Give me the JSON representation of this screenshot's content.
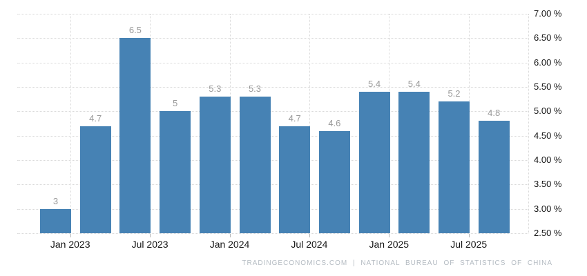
{
  "footer": {
    "text": "TRADINGECONOMICS.COM | NATIONAL BUREAU OF STATISTICS OF CHINA"
  },
  "chart_data": {
    "type": "bar",
    "values": [
      3,
      4.7,
      6.5,
      5,
      5.3,
      5.3,
      4.7,
      4.6,
      5.4,
      5.4,
      5.2,
      4.8
    ],
    "bar_labels": [
      "3",
      "4.7",
      "6.5",
      "5",
      "5.3",
      "5.3",
      "4.7",
      "4.6",
      "5.4",
      "5.4",
      "5.2",
      "4.8"
    ],
    "x_tick_labels": [
      "Jan 2023",
      "Jul 2023",
      "Jan 2024",
      "Jul 2024",
      "Jan 2025",
      "Jul 2025"
    ],
    "y_tick_labels": [
      "7.00 %",
      "6.50 %",
      "6.00 %",
      "5.50 %",
      "5.00 %",
      "4.50 %",
      "4.00 %",
      "3.50 %",
      "3.00 %",
      "2.50 %"
    ],
    "ylim": [
      2.5,
      7.0
    ],
    "y_step": 0.5,
    "grid": true,
    "legend": "none",
    "title": "",
    "xlabel": "",
    "ylabel": "",
    "bar_color": "#4682B4",
    "value_label_color": "#999999",
    "axis_label_color": "#141414",
    "grid_color": "#d9d9d9"
  }
}
